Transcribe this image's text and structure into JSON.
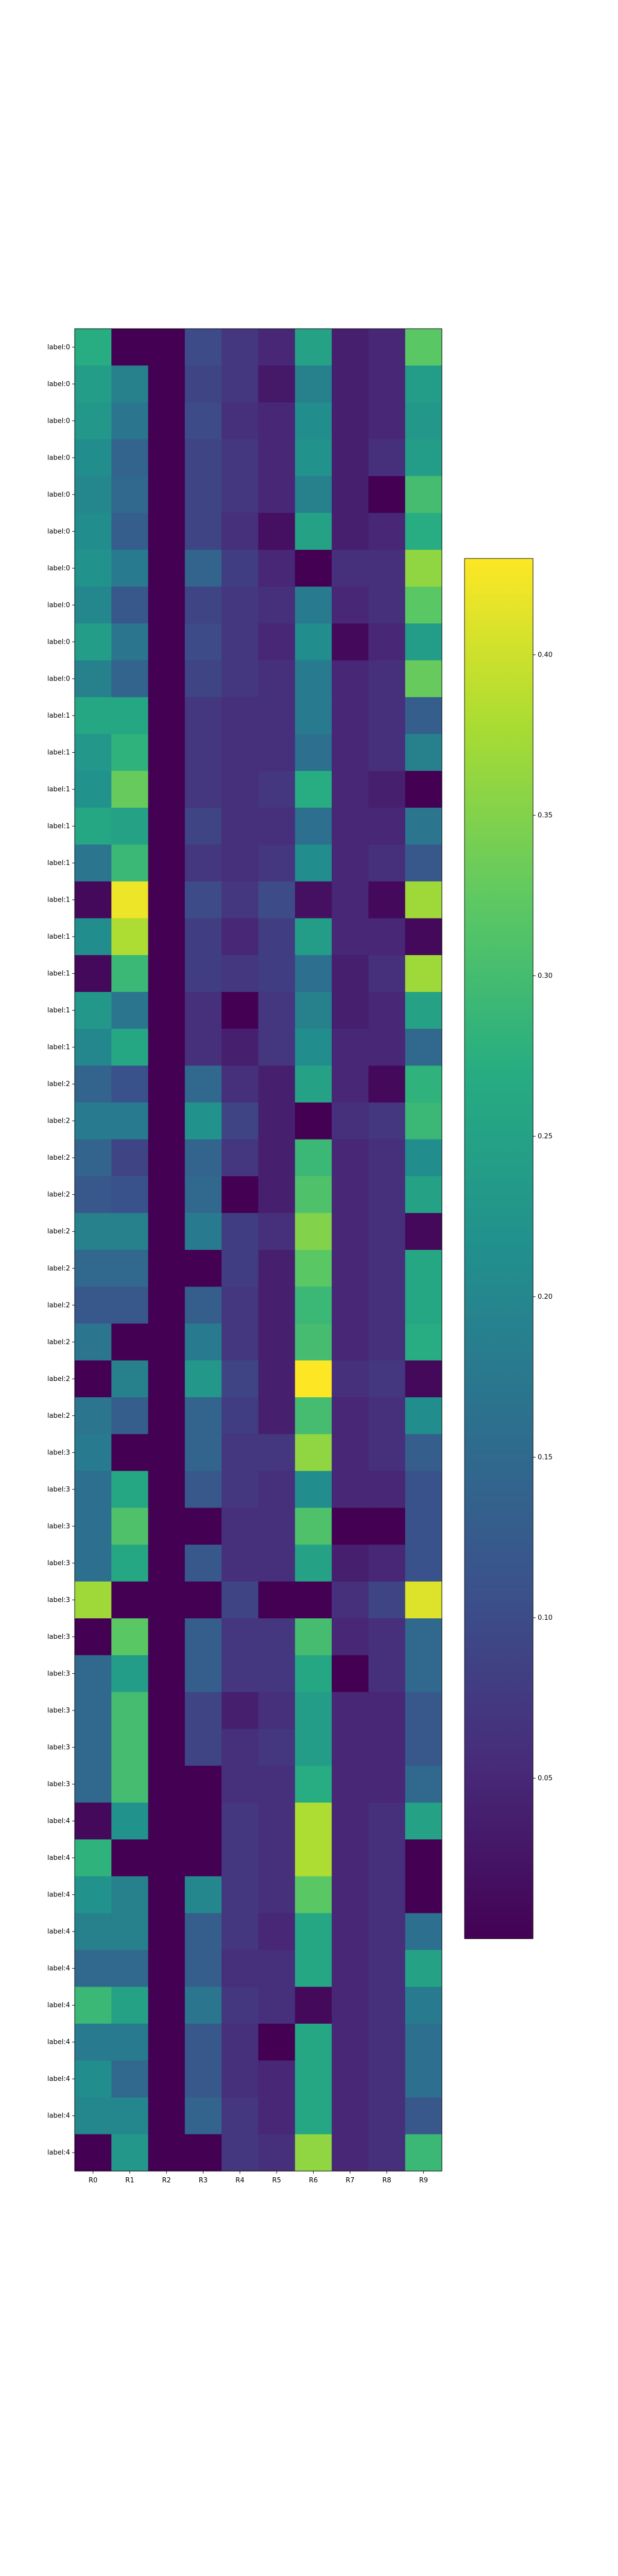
{
  "chart_data": {
    "type": "heatmap",
    "title": "",
    "xlabel": "",
    "ylabel": "",
    "columns": [
      "R0",
      "R1",
      "R2",
      "R3",
      "R4",
      "R5",
      "R6",
      "R7",
      "R8",
      "R9"
    ],
    "rows": [
      "label:0",
      "label:0",
      "label:0",
      "label:0",
      "label:0",
      "label:0",
      "label:0",
      "label:0",
      "label:0",
      "label:0",
      "label:1",
      "label:1",
      "label:1",
      "label:1",
      "label:1",
      "label:1",
      "label:1",
      "label:1",
      "label:1",
      "label:1",
      "label:2",
      "label:2",
      "label:2",
      "label:2",
      "label:2",
      "label:2",
      "label:2",
      "label:2",
      "label:2",
      "label:2",
      "label:3",
      "label:3",
      "label:3",
      "label:3",
      "label:3",
      "label:3",
      "label:3",
      "label:3",
      "label:3",
      "label:3",
      "label:4",
      "label:4",
      "label:4",
      "label:4",
      "label:4",
      "label:4",
      "label:4",
      "label:4",
      "label:4",
      "label:4"
    ],
    "values": [
      [
        0.27,
        0.0,
        0.0,
        0.1,
        0.07,
        0.05,
        0.25,
        0.04,
        0.05,
        0.32
      ],
      [
        0.24,
        0.19,
        0.0,
        0.09,
        0.07,
        0.03,
        0.19,
        0.04,
        0.05,
        0.24
      ],
      [
        0.23,
        0.17,
        0.0,
        0.1,
        0.06,
        0.05,
        0.21,
        0.04,
        0.05,
        0.23
      ],
      [
        0.21,
        0.14,
        0.0,
        0.09,
        0.07,
        0.05,
        0.22,
        0.04,
        0.06,
        0.24
      ],
      [
        0.2,
        0.15,
        0.0,
        0.09,
        0.07,
        0.05,
        0.19,
        0.04,
        0.0,
        0.3
      ],
      [
        0.21,
        0.13,
        0.0,
        0.09,
        0.06,
        0.02,
        0.25,
        0.04,
        0.05,
        0.27
      ],
      [
        0.22,
        0.18,
        0.0,
        0.14,
        0.08,
        0.05,
        0.0,
        0.06,
        0.06,
        0.36
      ],
      [
        0.2,
        0.12,
        0.0,
        0.09,
        0.07,
        0.06,
        0.18,
        0.05,
        0.06,
        0.32
      ],
      [
        0.24,
        0.17,
        0.0,
        0.1,
        0.07,
        0.05,
        0.21,
        0.01,
        0.05,
        0.24
      ],
      [
        0.19,
        0.14,
        0.0,
        0.09,
        0.07,
        0.06,
        0.18,
        0.05,
        0.06,
        0.33
      ],
      [
        0.26,
        0.26,
        0.0,
        0.07,
        0.06,
        0.06,
        0.18,
        0.05,
        0.06,
        0.13
      ],
      [
        0.23,
        0.28,
        0.0,
        0.07,
        0.06,
        0.06,
        0.16,
        0.05,
        0.06,
        0.19
      ],
      [
        0.22,
        0.33,
        0.0,
        0.07,
        0.06,
        0.07,
        0.27,
        0.05,
        0.04,
        0.0
      ],
      [
        0.26,
        0.25,
        0.0,
        0.09,
        0.06,
        0.06,
        0.16,
        0.05,
        0.05,
        0.17
      ],
      [
        0.17,
        0.29,
        0.0,
        0.07,
        0.06,
        0.07,
        0.21,
        0.05,
        0.06,
        0.12
      ],
      [
        0.01,
        0.42,
        0.0,
        0.1,
        0.07,
        0.1,
        0.02,
        0.05,
        0.01,
        0.37
      ],
      [
        0.21,
        0.38,
        0.0,
        0.08,
        0.05,
        0.08,
        0.24,
        0.05,
        0.05,
        0.01
      ],
      [
        0.01,
        0.29,
        0.0,
        0.08,
        0.07,
        0.08,
        0.16,
        0.04,
        0.06,
        0.37
      ],
      [
        0.23,
        0.17,
        0.0,
        0.06,
        0.0,
        0.07,
        0.19,
        0.04,
        0.05,
        0.25
      ],
      [
        0.2,
        0.26,
        0.0,
        0.06,
        0.04,
        0.07,
        0.21,
        0.05,
        0.05,
        0.15
      ],
      [
        0.14,
        0.11,
        0.0,
        0.15,
        0.06,
        0.04,
        0.25,
        0.05,
        0.01,
        0.28
      ],
      [
        0.18,
        0.18,
        0.0,
        0.22,
        0.09,
        0.04,
        0.0,
        0.06,
        0.07,
        0.29
      ],
      [
        0.14,
        0.09,
        0.0,
        0.14,
        0.07,
        0.04,
        0.29,
        0.05,
        0.06,
        0.21
      ],
      [
        0.12,
        0.11,
        0.0,
        0.15,
        0.0,
        0.04,
        0.31,
        0.05,
        0.06,
        0.25
      ],
      [
        0.19,
        0.19,
        0.0,
        0.18,
        0.08,
        0.06,
        0.35,
        0.05,
        0.06,
        0.01
      ],
      [
        0.15,
        0.15,
        0.0,
        0.0,
        0.08,
        0.04,
        0.32,
        0.05,
        0.06,
        0.26
      ],
      [
        0.12,
        0.12,
        0.0,
        0.13,
        0.07,
        0.04,
        0.29,
        0.05,
        0.06,
        0.26
      ],
      [
        0.17,
        0.0,
        0.0,
        0.18,
        0.07,
        0.04,
        0.3,
        0.05,
        0.06,
        0.27
      ],
      [
        0.0,
        0.19,
        0.0,
        0.23,
        0.09,
        0.04,
        0.43,
        0.06,
        0.07,
        0.01
      ],
      [
        0.17,
        0.13,
        0.0,
        0.14,
        0.08,
        0.04,
        0.3,
        0.05,
        0.06,
        0.21
      ],
      [
        0.18,
        0.0,
        0.0,
        0.14,
        0.07,
        0.07,
        0.36,
        0.05,
        0.06,
        0.13
      ],
      [
        0.16,
        0.26,
        0.0,
        0.12,
        0.07,
        0.06,
        0.21,
        0.05,
        0.05,
        0.11
      ],
      [
        0.16,
        0.31,
        0.0,
        0.0,
        0.06,
        0.06,
        0.31,
        0.0,
        0.0,
        0.11
      ],
      [
        0.16,
        0.26,
        0.0,
        0.12,
        0.06,
        0.06,
        0.25,
        0.04,
        0.05,
        0.11
      ],
      [
        0.37,
        0.0,
        0.0,
        0.0,
        0.09,
        0.0,
        0.0,
        0.06,
        0.09,
        0.41
      ],
      [
        0.0,
        0.32,
        0.0,
        0.13,
        0.07,
        0.07,
        0.3,
        0.05,
        0.06,
        0.15
      ],
      [
        0.15,
        0.24,
        0.0,
        0.13,
        0.07,
        0.07,
        0.26,
        0.0,
        0.06,
        0.15
      ],
      [
        0.15,
        0.3,
        0.0,
        0.09,
        0.04,
        0.06,
        0.24,
        0.05,
        0.05,
        0.12
      ],
      [
        0.15,
        0.3,
        0.0,
        0.09,
        0.06,
        0.07,
        0.24,
        0.05,
        0.05,
        0.12
      ],
      [
        0.15,
        0.3,
        0.0,
        0.0,
        0.06,
        0.06,
        0.27,
        0.05,
        0.05,
        0.15
      ],
      [
        0.01,
        0.22,
        0.0,
        0.0,
        0.07,
        0.06,
        0.38,
        0.05,
        0.06,
        0.25
      ],
      [
        0.28,
        0.0,
        0.0,
        0.0,
        0.07,
        0.06,
        0.38,
        0.05,
        0.06,
        0.0
      ],
      [
        0.22,
        0.19,
        0.0,
        0.2,
        0.07,
        0.06,
        0.32,
        0.05,
        0.06,
        0.0
      ],
      [
        0.19,
        0.19,
        0.0,
        0.13,
        0.07,
        0.05,
        0.26,
        0.05,
        0.06,
        0.16
      ],
      [
        0.15,
        0.15,
        0.0,
        0.13,
        0.06,
        0.06,
        0.26,
        0.05,
        0.06,
        0.25
      ],
      [
        0.29,
        0.25,
        0.0,
        0.17,
        0.07,
        0.06,
        0.01,
        0.05,
        0.06,
        0.18
      ],
      [
        0.18,
        0.18,
        0.0,
        0.12,
        0.06,
        0.0,
        0.26,
        0.05,
        0.06,
        0.16
      ],
      [
        0.21,
        0.15,
        0.0,
        0.12,
        0.06,
        0.05,
        0.26,
        0.05,
        0.06,
        0.16
      ],
      [
        0.2,
        0.2,
        0.0,
        0.14,
        0.07,
        0.05,
        0.26,
        0.05,
        0.06,
        0.12
      ],
      [
        0.0,
        0.23,
        0.0,
        0.0,
        0.07,
        0.06,
        0.36,
        0.05,
        0.06,
        0.29
      ]
    ],
    "colormap": "viridis",
    "vmin": 0.0,
    "vmax": 0.43,
    "colorbar_ticks": [
      0.05,
      0.1,
      0.15,
      0.2,
      0.25,
      0.3,
      0.35,
      0.4
    ],
    "colorbar_tick_labels": [
      "0.05",
      "0.10",
      "0.15",
      "0.20",
      "0.25",
      "0.30",
      "0.35",
      "0.40"
    ],
    "grid": false,
    "legend": "colorbar-right"
  }
}
